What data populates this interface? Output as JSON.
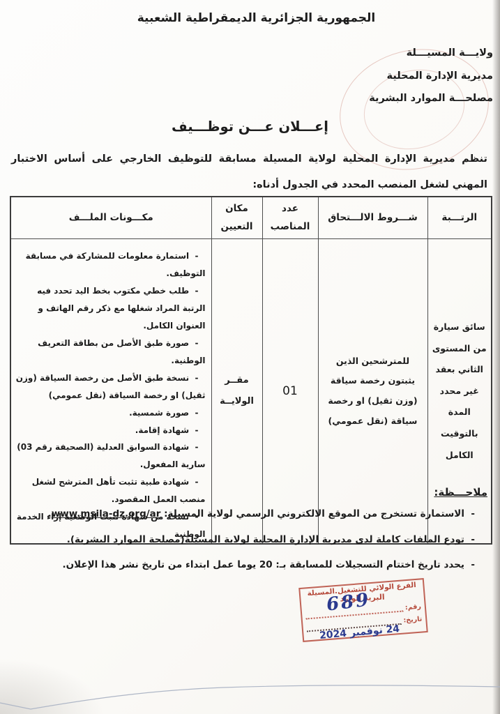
{
  "document": {
    "republic_title": "الجمهورية الجزائرية الديمقراطية الشعبية",
    "letterhead": {
      "wilaya": "ولايـــة المسيـــلة",
      "directorate": "مديرية الإدارة المحلية",
      "service": "مصلحـــة الموارد البشرية"
    },
    "title": "إعـــلان عـــن توظـــيف",
    "intro": "تنظم مديرية الإدارة المحلية لولاية المسيلة مسابقة للتوظيف الخارجي على أساس الاختبار المهني لشغل المنصب المحدد في الجدول أدناه:"
  },
  "table": {
    "headers": {
      "rank": "الرتـــبة",
      "conditions": "شـــروط الالـــتحاق",
      "positions": "عدد المناصب",
      "location": "مكان التعيين",
      "file": "مكـــونات الملـــف"
    },
    "row": {
      "rank": "سائق سيارة من المستوى الثاني بعقد غير محدد المدة بالتوقيت الكامل",
      "conditions": "للمترشحين الذين يثبتون رخصة سياقة (وزن ثقيل) او رخصة سياقة (نقل عمومي)",
      "positions": "01",
      "location": "مقــر الولايــة",
      "file_items": [
        "استمارة معلومات للمشاركة في مسابقة التوظيف.",
        "طلب خطي مكتوب بخط اليد تحدد فيه الرتبة المراد شغلها مع ذكر رقم الهاتف و العنوان الكامل.",
        "صورة طبق الأصل من بطاقة التعريف الوطنية.",
        "نسخة طبق الأصل من رخصة السياقة (وزن ثقيل) او رخصة السياقة (نقل عمومي)",
        "صورة شمسية.",
        "شهادة إقامة.",
        "شهادة السوابق العدلية (الصحيفة رقم 03) سارية المفعول.",
        "شهادة طبية تثبت تأهل المترشح لشغل منصب العمل المقصود.",
        "نسخة من شهادة تثبت الوضعية إزاء الخدمة الوطنية"
      ]
    }
  },
  "notes": {
    "label": "ملاحـــظة:",
    "item1_prefix": "الاستمارة تستخرج من الموقع الالكتروني الرسمي لولاية المسيلة: ",
    "item1_link": "www.msila-dz.org/ar",
    "item1_suffix": ".",
    "item2": "تودع الملفات كاملة لدى مديرية الإدارة المحلية لولاية المسيلة(مصلحة الموارد البشرية).",
    "item3": "يحدد تاريخ اختتام التسجيلات للمسابقة بـ: 20 يوما عمل ابتداء من تاريخ نشر هذا الإعلان."
  },
  "stamp": {
    "line1": "الفرع الولائي للتشغيل.المسيلة",
    "line2": "البريد الوارد",
    "number_label": "رقم:",
    "date_label": "تاريخ:",
    "handwritten_number": "689",
    "handwritten_date": "24 نوفمبر 2024"
  },
  "colors": {
    "stamp_red": "#b5493a",
    "handwriting_blue": "#2b3a8e",
    "ink": "#1c1c1c"
  }
}
